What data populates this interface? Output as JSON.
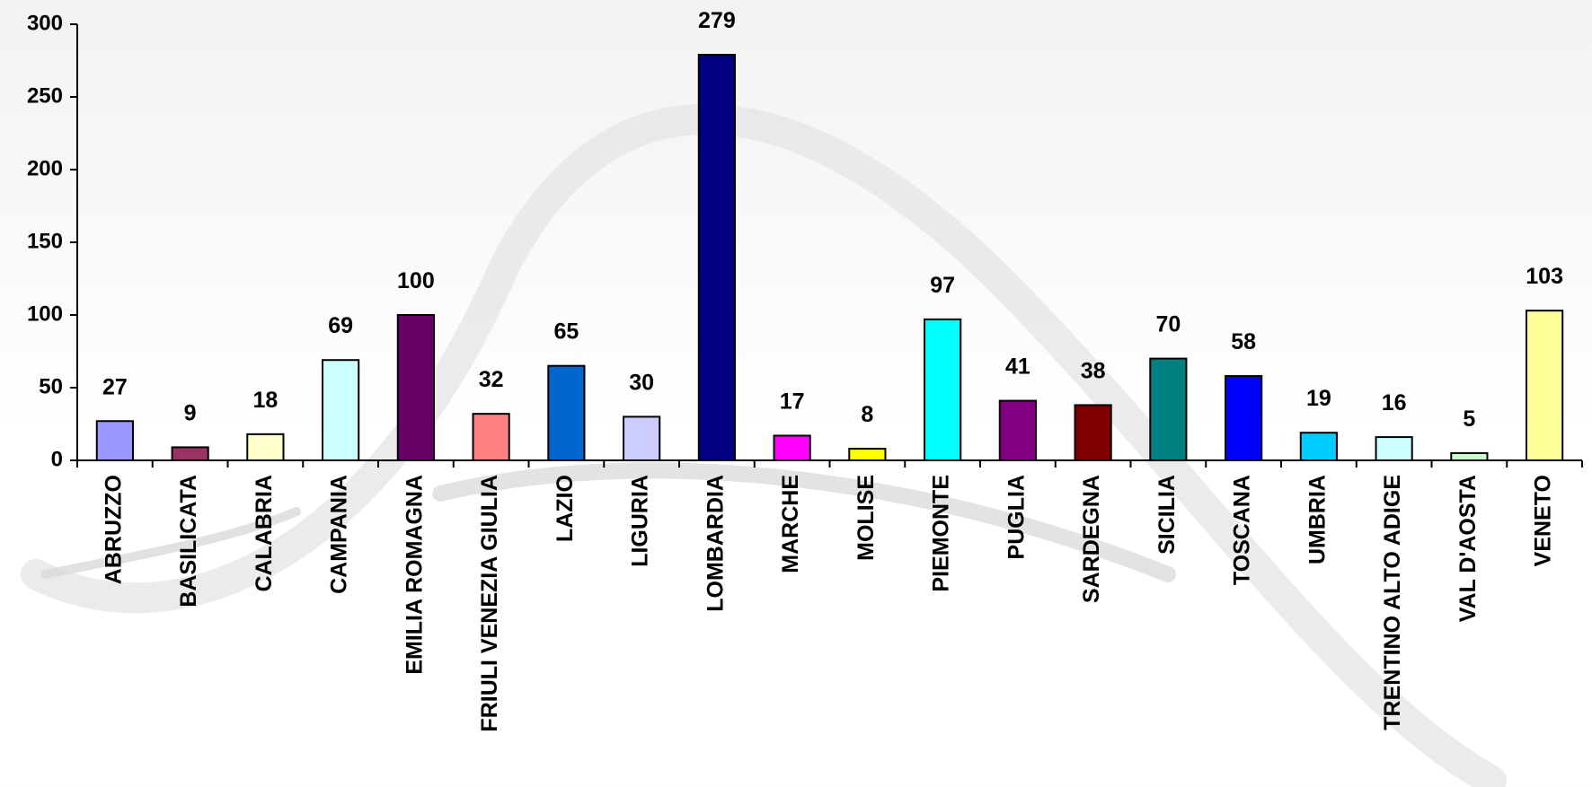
{
  "chart_data": {
    "type": "bar",
    "categories": [
      "ABRUZZO",
      "BASILICATA",
      "CALABRIA",
      "CAMPANIA",
      "EMILIA ROMAGNA",
      "FRIULI VENEZIA GIULIA",
      "LAZIO",
      "LIGURIA",
      "LOMBARDIA",
      "MARCHE",
      "MOLISE",
      "PIEMONTE",
      "PUGLIA",
      "SARDEGNA",
      "SICILIA",
      "TOSCANA",
      "UMBRIA",
      "TRENTINO ALTO ADIGE",
      "VAL D'AOSTA",
      "VENETO"
    ],
    "values": [
      27,
      9,
      18,
      69,
      100,
      32,
      65,
      30,
      279,
      17,
      8,
      97,
      41,
      38,
      70,
      58,
      19,
      16,
      5,
      103
    ],
    "colors": [
      "#9999ff",
      "#993366",
      "#ffffcc",
      "#ccffff",
      "#660066",
      "#ff8080",
      "#0066cc",
      "#ccccff",
      "#000080",
      "#ff00ff",
      "#ffff00",
      "#00ffff",
      "#800080",
      "#800000",
      "#008080",
      "#0000ff",
      "#00ccff",
      "#ccffff",
      "#ccffcc",
      "#ffff99"
    ],
    "ylim": [
      0,
      300
    ],
    "yticks": [
      0,
      50,
      100,
      150,
      200,
      250,
      300
    ]
  }
}
